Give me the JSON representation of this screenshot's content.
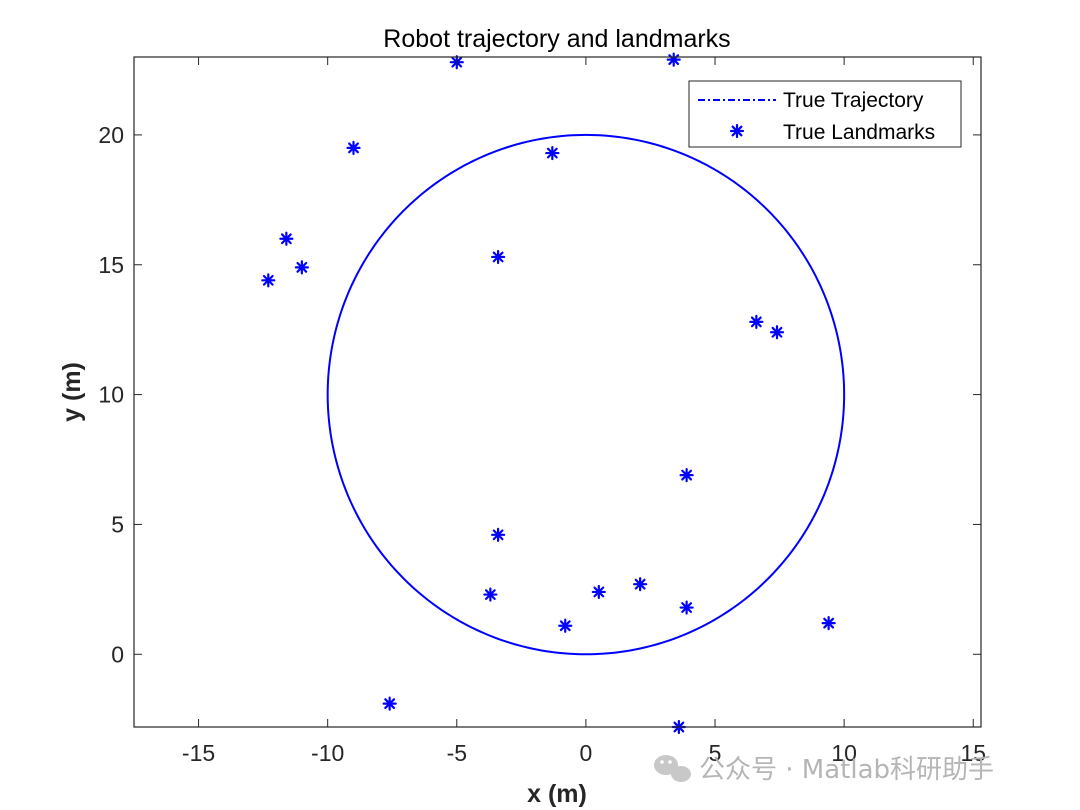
{
  "chart_data": {
    "type": "line",
    "title": "Robot trajectory and landmarks",
    "xlabel": "x (m)",
    "ylabel": "y (m)",
    "xlim": [
      -17.5,
      15.3
    ],
    "ylim": [
      -2.8,
      23
    ],
    "xticks": [
      -15,
      -10,
      -5,
      0,
      5,
      10,
      15
    ],
    "yticks": [
      0,
      5,
      10,
      15,
      20
    ],
    "grid": false,
    "legend_position": "top-right",
    "series": [
      {
        "name": "True Trajectory",
        "type": "line",
        "style": "dash-dot",
        "shape": "circle",
        "center": [
          0,
          10
        ],
        "radius": 10,
        "color": "#0000ff"
      },
      {
        "name": "True Landmarks",
        "type": "scatter",
        "marker": "asterisk",
        "color": "#0000ff",
        "points": [
          [
            -5.0,
            22.8
          ],
          [
            3.4,
            22.9
          ],
          [
            -9.0,
            19.5
          ],
          [
            -1.3,
            19.3
          ],
          [
            -11.6,
            16.0
          ],
          [
            -11.0,
            14.9
          ],
          [
            -12.3,
            14.4
          ],
          [
            -3.4,
            15.3
          ],
          [
            6.6,
            12.8
          ],
          [
            7.4,
            12.4
          ],
          [
            3.9,
            6.9
          ],
          [
            -3.4,
            4.6
          ],
          [
            -3.7,
            2.3
          ],
          [
            0.5,
            2.4
          ],
          [
            2.1,
            2.7
          ],
          [
            3.9,
            1.8
          ],
          [
            -0.8,
            1.1
          ],
          [
            9.4,
            1.2
          ],
          [
            -7.6,
            -1.9
          ],
          [
            3.6,
            -2.8
          ]
        ]
      }
    ]
  },
  "watermark": {
    "text": "公众号 · Matlab科研助手",
    "icon": "wechat-icon"
  }
}
